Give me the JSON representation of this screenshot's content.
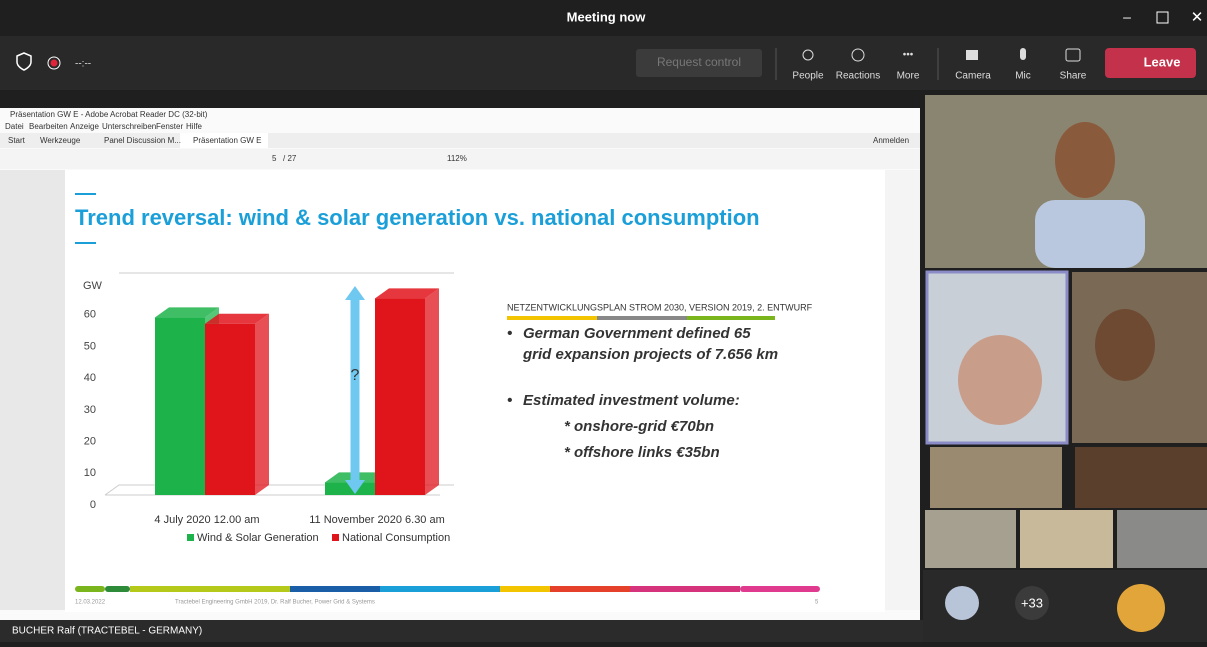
{
  "window": {
    "title": "Meeting now"
  },
  "toolbar": {
    "timer": "--:--",
    "request_control": "Request control",
    "buttons": [
      "People",
      "Reactions",
      "More",
      "Camera",
      "Mic",
      "Share"
    ],
    "leave": "Leave"
  },
  "pdf": {
    "window_title": "Präsentation GW E - Adobe Acrobat Reader DC (32-bit)",
    "menu": [
      "Datei",
      "Bearbeiten",
      "Anzeige",
      "Unterschreiben",
      "Fenster",
      "Hilfe"
    ],
    "tabs": [
      "Start",
      "Werkzeuge",
      "Panel Discussion M...",
      "Präsentation GW E"
    ],
    "signin": "Anmelden",
    "page": "5",
    "page_total": "/ 27",
    "zoom": "112%"
  },
  "slide": {
    "title": "Trend reversal: wind & solar generation vs. national consumption",
    "chart": {
      "type": "bar",
      "unit": "GW",
      "categories": [
        "4 July 2020 12.00 am",
        "11 November 2020 6.30 am"
      ],
      "series": [
        {
          "name": "Wind & Solar Generation",
          "color": "#1db34a",
          "values": [
            56,
            4
          ]
        },
        {
          "name": "National Consumption",
          "color": "#e0141b",
          "values": [
            54,
            62
          ]
        }
      ],
      "ylim": [
        0,
        70
      ],
      "yticks": [
        0,
        10,
        20,
        30,
        40,
        50,
        60
      ],
      "grid": false,
      "annotation": "?"
    },
    "source": "NETZENTWICKLUNGSPLAN STROM 2030, VERSION 2019, 2. ENTWURF",
    "bullets": [
      [
        "German Government defined 65",
        "grid expansion projects of 7.656 km"
      ],
      [
        "Estimated investment volume:"
      ]
    ],
    "sub_bullets": [
      "* onshore-grid €70bn",
      "* offshore links €35bn"
    ],
    "footer": {
      "date": "12.03.2022",
      "credit": "Tractebel Engineering GmbH 2019, Dr. Ralf Bucher, Power Grid & Systems",
      "page": "5"
    }
  },
  "presenter": "BUCHER Ralf (TRACTEBEL - GERMANY)",
  "more_participants": "+33"
}
